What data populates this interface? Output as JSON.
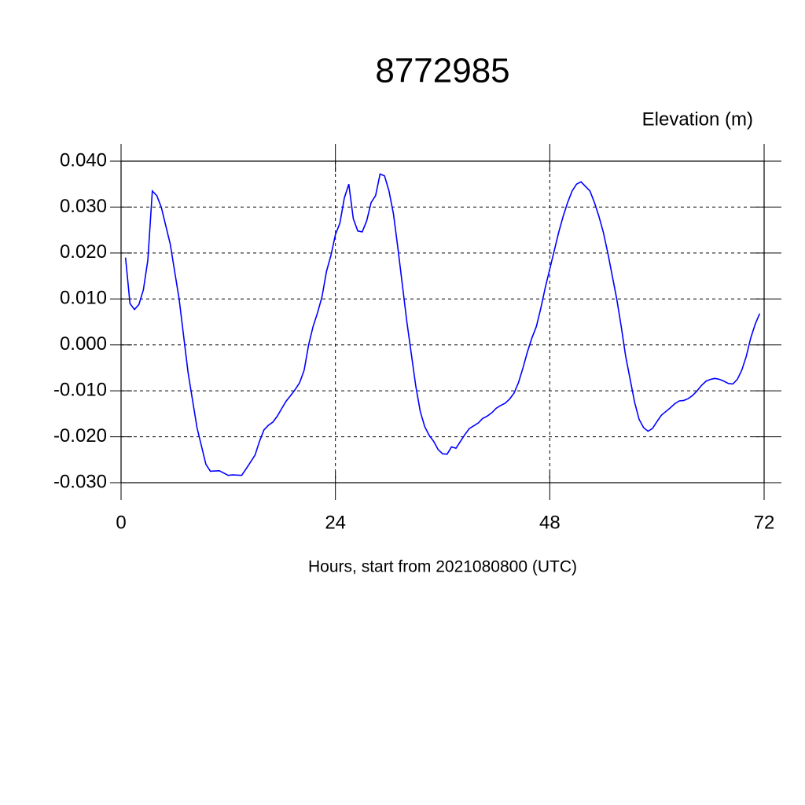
{
  "chart_data": {
    "type": "line",
    "title": "8772985",
    "ylabel": "Elevation (m)",
    "xlabel": "Hours, start from 2021080800 (UTC)",
    "xlim": [
      0,
      72
    ],
    "xticks": [
      0,
      24,
      48,
      72
    ],
    "ylim": [
      -0.03,
      0.04
    ],
    "yticks": [
      {
        "value": -0.03,
        "label": "-0.030"
      },
      {
        "value": -0.02,
        "label": "-0.020"
      },
      {
        "value": -0.01,
        "label": "-0.010"
      },
      {
        "value": 0,
        "label": "0.000"
      },
      {
        "value": 0.01,
        "label": "0.010"
      },
      {
        "value": 0.02,
        "label": "0.020"
      },
      {
        "value": 0.03,
        "label": "0.030"
      },
      {
        "value": 0.04,
        "label": "0.040"
      }
    ],
    "grid": true,
    "series": [
      {
        "color": "#0000ff",
        "x": [
          0.5,
          1,
          1.5,
          2,
          2.5,
          3,
          3.5,
          4,
          4.5,
          5,
          5.5,
          6,
          6.5,
          7,
          7.5,
          8,
          8.5,
          9,
          9.5,
          10,
          11,
          12,
          12.5,
          13.5,
          14,
          14.5,
          15,
          15.5,
          16,
          16.5,
          17,
          17.5,
          18,
          18.5,
          19,
          19.5,
          20,
          20.5,
          21,
          21.5,
          22,
          22.5,
          23,
          23.5,
          24,
          24.5,
          25,
          25.5,
          26,
          26.5,
          27,
          27.5,
          28,
          28.5,
          29,
          29.5,
          30,
          30.5,
          31,
          31.5,
          32,
          32.5,
          33,
          33.5,
          34,
          34.5,
          35,
          35.5,
          36,
          36.5,
          37,
          37.5,
          38,
          38.5,
          39,
          40,
          40.5,
          41,
          41.5,
          42,
          42.5,
          43,
          43.5,
          44,
          44.5,
          45,
          45.5,
          46,
          46.5,
          47,
          47.5,
          48,
          48.5,
          49,
          49.5,
          50,
          50.5,
          51,
          51.5,
          52,
          52.5,
          53,
          53.5,
          54,
          54.5,
          55,
          55.5,
          56,
          56.5,
          57,
          57.5,
          58,
          58.5,
          59,
          59.5,
          60,
          60.5,
          61,
          61.5,
          62,
          62.5,
          63,
          63.5,
          64,
          64.5,
          65,
          65.5,
          66,
          66.5,
          67,
          67.5,
          68,
          68.5,
          69,
          69.5,
          70,
          70.5,
          71,
          71.5
        ],
        "values": [
          0.019,
          0.009,
          0.0077,
          0.0088,
          0.012,
          0.0185,
          0.0335,
          0.0325,
          0.03,
          0.026,
          0.022,
          0.016,
          0.01,
          0.002,
          -0.006,
          -0.012,
          -0.018,
          -0.022,
          -0.026,
          -0.0275,
          -0.0274,
          -0.0284,
          -0.0283,
          -0.0284,
          -0.027,
          -0.0255,
          -0.024,
          -0.021,
          -0.0185,
          -0.0175,
          -0.0168,
          -0.0155,
          -0.0138,
          -0.0122,
          -0.011,
          -0.0097,
          -0.0082,
          -0.0055,
          0,
          0.004,
          0.007,
          0.0105,
          0.016,
          0.0195,
          0.024,
          0.0265,
          0.032,
          0.035,
          0.0275,
          0.0248,
          0.0246,
          0.027,
          0.031,
          0.0325,
          0.0372,
          0.0368,
          0.0335,
          0.0285,
          0.021,
          0.013,
          0.005,
          -0.002,
          -0.009,
          -0.0145,
          -0.0178,
          -0.0197,
          -0.021,
          -0.0228,
          -0.0237,
          -0.0238,
          -0.0222,
          -0.0225,
          -0.021,
          -0.0195,
          -0.0182,
          -0.017,
          -0.016,
          -0.0155,
          -0.0148,
          -0.0138,
          -0.0132,
          -0.0127,
          -0.0118,
          -0.0105,
          -0.0082,
          -0.005,
          -0.0015,
          0.0015,
          0.004,
          0.008,
          0.0125,
          0.0165,
          0.0205,
          0.0245,
          0.028,
          0.031,
          0.0335,
          0.035,
          0.0355,
          0.0345,
          0.0335,
          0.031,
          0.028,
          0.0245,
          0.02,
          0.015,
          0.01,
          0.004,
          -0.0025,
          -0.0075,
          -0.0125,
          -0.0162,
          -0.018,
          -0.0188,
          -0.0182,
          -0.0167,
          -0.0153,
          -0.0145,
          -0.0137,
          -0.0128,
          -0.0122,
          -0.0121,
          -0.0117,
          -0.011,
          -0.01,
          -0.0088,
          -0.0079,
          -0.0075,
          -0.0073,
          -0.0075,
          -0.0079,
          -0.0084,
          -0.0085,
          -0.0075,
          -0.0055,
          -0.0025,
          0.0015,
          0.0045,
          0.0068
        ]
      }
    ]
  }
}
